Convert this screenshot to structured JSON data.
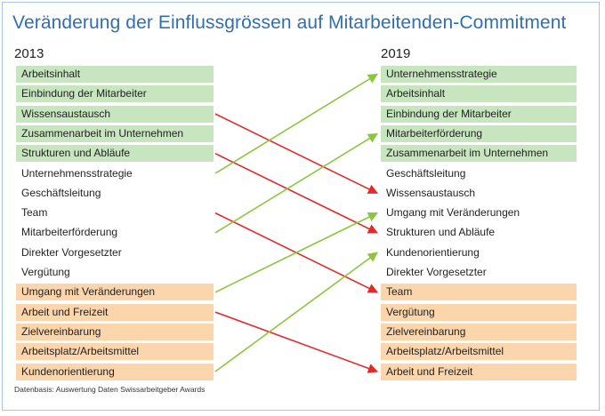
{
  "title": "Veränderung der Einflussgrössen auf Mitarbeitenden-Commitment",
  "left": {
    "year": "2013",
    "items": [
      {
        "label": "Arbeitsinhalt",
        "group": "green"
      },
      {
        "label": "Einbindung der Mitarbeiter",
        "group": "green"
      },
      {
        "label": "Wissensaustausch",
        "group": "green"
      },
      {
        "label": "Zusammenarbeit im Unternehmen",
        "group": "green"
      },
      {
        "label": "Strukturen und Abläufe",
        "group": "green"
      },
      {
        "label": "Unternehmensstrategie",
        "group": "plain"
      },
      {
        "label": "Geschäftsleitung",
        "group": "plain"
      },
      {
        "label": "Team",
        "group": "plain"
      },
      {
        "label": "Mitarbeiterförderung",
        "group": "plain"
      },
      {
        "label": "Direkter Vorgesetzter",
        "group": "plain"
      },
      {
        "label": "Vergütung",
        "group": "plain"
      },
      {
        "label": "Umgang mit Veränderungen",
        "group": "orange"
      },
      {
        "label": "Arbeit und Freizeit",
        "group": "orange"
      },
      {
        "label": "Zielvereinbarung",
        "group": "orange"
      },
      {
        "label": "Arbeitsplatz/Arbeitsmittel",
        "group": "orange"
      },
      {
        "label": "Kundenorientierung",
        "group": "orange"
      }
    ]
  },
  "right": {
    "year": "2019",
    "items": [
      {
        "label": "Unternehmensstrategie",
        "group": "green"
      },
      {
        "label": "Arbeitsinhalt",
        "group": "green"
      },
      {
        "label": "Einbindung der Mitarbeiter",
        "group": "green"
      },
      {
        "label": "Mitarbeiterförderung",
        "group": "green"
      },
      {
        "label": "Zusammenarbeit im Unternehmen",
        "group": "green"
      },
      {
        "label": "Geschäftsleitung",
        "group": "plain"
      },
      {
        "label": "Wissensaustausch",
        "group": "plain"
      },
      {
        "label": "Umgang mit Veränderungen",
        "group": "plain"
      },
      {
        "label": "Strukturen und Abläufe",
        "group": "plain"
      },
      {
        "label": "Kundenorientierung",
        "group": "plain"
      },
      {
        "label": "Direkter Vorgesetzter",
        "group": "plain"
      },
      {
        "label": "Team",
        "group": "orange"
      },
      {
        "label": "Vergütung",
        "group": "orange"
      },
      {
        "label": "Zielvereinbarung",
        "group": "orange"
      },
      {
        "label": "Arbeitsplatz/Arbeitsmittel",
        "group": "orange"
      },
      {
        "label": "Arbeit und Freizeit",
        "group": "orange"
      }
    ]
  },
  "connections": [
    {
      "from": 2,
      "to": 6,
      "direction": "down",
      "color": "#e02b2b"
    },
    {
      "from": 4,
      "to": 8,
      "direction": "down",
      "color": "#e02b2b"
    },
    {
      "from": 7,
      "to": 11,
      "direction": "down",
      "color": "#e02b2b"
    },
    {
      "from": 12,
      "to": 15,
      "direction": "down",
      "color": "#e02b2b"
    },
    {
      "from": 5,
      "to": 0,
      "direction": "up",
      "color": "#8cc63f"
    },
    {
      "from": 8,
      "to": 3,
      "direction": "up",
      "color": "#8cc63f"
    },
    {
      "from": 11,
      "to": 7,
      "direction": "up",
      "color": "#8cc63f"
    },
    {
      "from": 15,
      "to": 9,
      "direction": "up",
      "color": "#8cc63f"
    }
  ],
  "source": "Datenbasis: Auswertung Daten Swissarbeitgeber Awards"
}
